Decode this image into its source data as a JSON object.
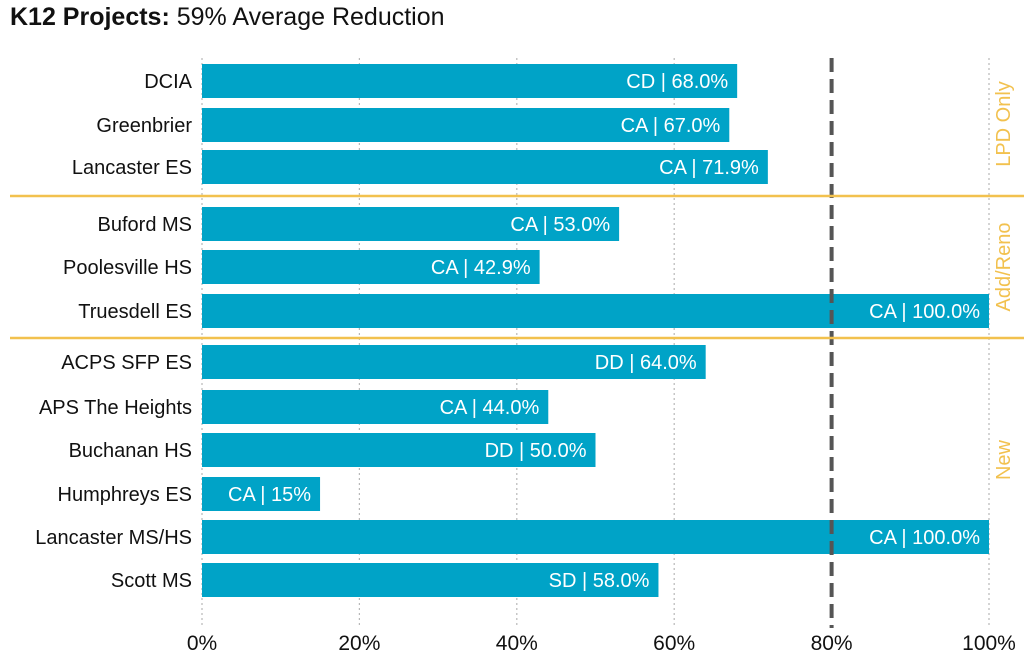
{
  "title": {
    "bold": "K12 Projects:",
    "rest": " 59% Average Reduction"
  },
  "colors": {
    "bar": "#00a3c7",
    "separator": "#f2c14e",
    "group_label": "#f2c14e",
    "target_line": "#555555",
    "grid": "#b8b8b8"
  },
  "chart_data": {
    "type": "bar",
    "orientation": "horizontal",
    "title": "K12 Projects: 59% Average Reduction",
    "xlabel": "",
    "ylabel": "",
    "xlim": [
      0,
      100
    ],
    "x_ticks": [
      "0%",
      "20%",
      "40%",
      "60%",
      "80%",
      "100%"
    ],
    "x_tick_values": [
      0,
      20,
      40,
      60,
      80,
      100
    ],
    "grid": "vertical dotted",
    "reference_line": {
      "value": 80,
      "style": "dashed"
    },
    "groups": [
      {
        "name": "LPD Only",
        "categories": [
          "DCIA",
          "Greenbrier",
          "Lancaster ES"
        ]
      },
      {
        "name": "Add/Reno",
        "categories": [
          "Buford MS",
          "Poolesville HS",
          "Truesdell ES"
        ]
      },
      {
        "name": "New",
        "categories": [
          "ACPS SFP ES",
          "APS The Heights",
          "Buchanan HS",
          "Humphreys ES",
          "Lancaster MS/HS",
          "Scott MS"
        ]
      }
    ],
    "categories": [
      "DCIA",
      "Greenbrier",
      "Lancaster ES",
      "Buford MS",
      "Poolesville HS",
      "Truesdell ES",
      "ACPS SFP ES",
      "APS The Heights",
      "Buchanan HS",
      "Humphreys ES",
      "Lancaster MS/HS",
      "Scott MS"
    ],
    "values": [
      68.0,
      67.0,
      71.9,
      53.0,
      42.9,
      100.0,
      64.0,
      44.0,
      50.0,
      15.0,
      100.0,
      58.0
    ],
    "labels": [
      "CD | 68.0%",
      "CA | 67.0%",
      "CA | 71.9%",
      "CA | 53.0%",
      "CA | 42.9%",
      "CA | 100.0%",
      "DD | 64.0%",
      "CA | 44.0%",
      "DD | 50.0%",
      "CA | 15%",
      "CA | 100.0%",
      "SD | 58.0%"
    ]
  }
}
